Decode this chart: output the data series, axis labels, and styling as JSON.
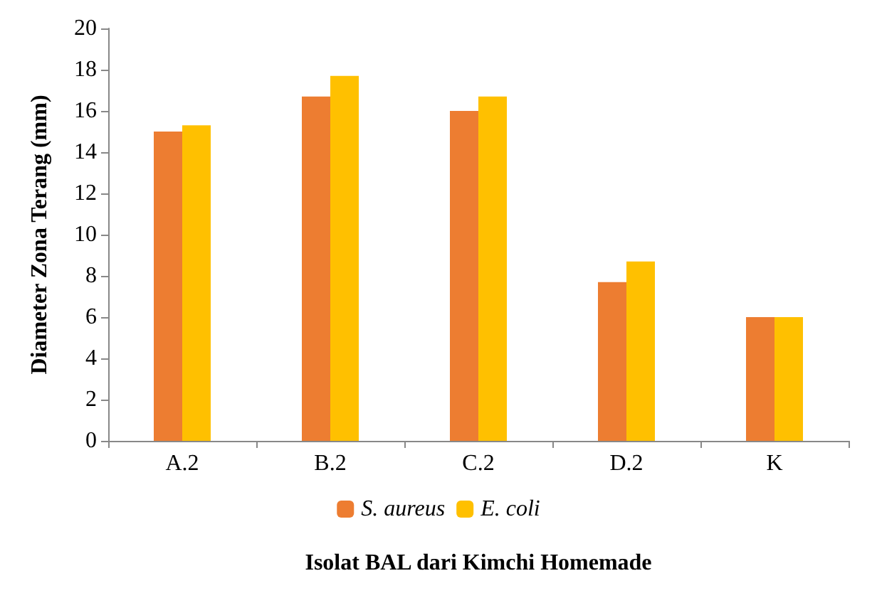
{
  "chart_data": {
    "type": "bar",
    "xlabel": "Isolat BAL dari Kimchi Homemade",
    "ylabel": "Diameter Zona Terang (mm)",
    "categories": [
      "A.2",
      "B.2",
      "C.2",
      "D.2",
      "K"
    ],
    "series": [
      {
        "name": "S. aureus",
        "color": "#ed7d31",
        "values": [
          15.0,
          16.7,
          16.0,
          7.7,
          6.0
        ]
      },
      {
        "name": "E. coli",
        "color": "#ffc000",
        "values": [
          15.3,
          17.7,
          16.7,
          8.7,
          6.0
        ]
      }
    ],
    "ylim": [
      0,
      20
    ],
    "yticks": [
      0,
      2,
      4,
      6,
      8,
      10,
      12,
      14,
      16,
      18,
      20
    ],
    "grid": false,
    "legend": "bottom"
  }
}
